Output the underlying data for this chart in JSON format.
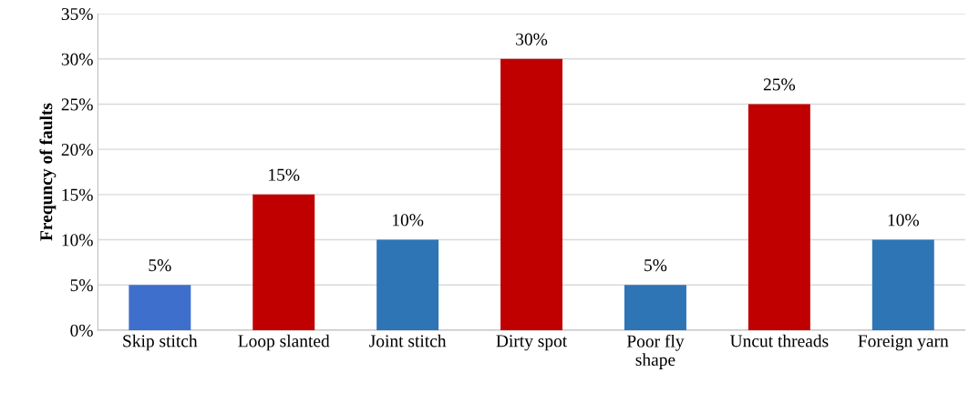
{
  "chart_data": {
    "type": "bar",
    "ylabel": "Frequncy of faults",
    "categories": [
      "Skip stitch",
      "Loop slanted",
      "Joint stitch",
      "Dirty spot",
      "Poor fly\nshape",
      "Uncut threads",
      "Foreign yarn"
    ],
    "values": [
      5,
      15,
      10,
      30,
      5,
      25,
      10
    ],
    "colors": [
      "#3f6fcc",
      "#c00000",
      "#2e75b6",
      "#c00000",
      "#2e75b6",
      "#c00000",
      "#2e75b6"
    ],
    "value_labels": [
      "5%",
      "15%",
      "10%",
      "30%",
      "5%",
      "25%",
      "10%"
    ],
    "ylim": [
      0,
      35
    ],
    "yticks": [
      {
        "value": 0,
        "label": "0%"
      },
      {
        "value": 5,
        "label": "5%"
      },
      {
        "value": 10,
        "label": "10%"
      },
      {
        "value": 15,
        "label": "15%"
      },
      {
        "value": 20,
        "label": "20%"
      },
      {
        "value": 25,
        "label": "25%"
      },
      {
        "value": 30,
        "label": "30%"
      },
      {
        "value": 35,
        "label": "35%"
      }
    ],
    "grid": "y",
    "legend": false
  }
}
